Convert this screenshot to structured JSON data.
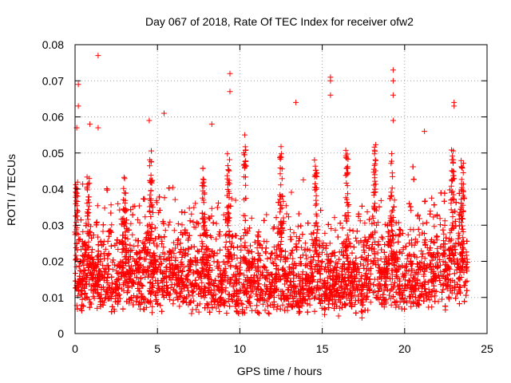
{
  "chart_data": {
    "type": "scatter",
    "title": "Day 067 of 2018, Rate Of TEC Index for receiver ofw2",
    "xlabel": "GPS time / hours",
    "ylabel": "ROTI / TECUs",
    "xlim": [
      0,
      25
    ],
    "ylim": [
      0,
      0.08
    ],
    "xticks": [
      0,
      5,
      10,
      15,
      20,
      25
    ],
    "xtick_labels": [
      "0",
      "5",
      "10",
      "15",
      "20",
      "25"
    ],
    "yticks": [
      0,
      0.01,
      0.02,
      0.03,
      0.04,
      0.05,
      0.06,
      0.07,
      0.08
    ],
    "ytick_labels": [
      "0",
      "0.01",
      "0.02",
      "0.03",
      "0.04",
      "0.05",
      "0.06",
      "0.07",
      "0.08"
    ],
    "grid": true,
    "marker": "+",
    "series": [
      {
        "name": "ROTI",
        "color": "#ff0000",
        "x_range": [
          0,
          23.8
        ],
        "baseline_median": 0.014,
        "typical_range": [
          0.006,
          0.035
        ],
        "notable_points": [
          {
            "x": 1.4,
            "y": 0.077
          },
          {
            "x": 0.2,
            "y": 0.069
          },
          {
            "x": 0.2,
            "y": 0.063
          },
          {
            "x": 0.1,
            "y": 0.057
          },
          {
            "x": 0.9,
            "y": 0.058
          },
          {
            "x": 1.4,
            "y": 0.057
          },
          {
            "x": 4.5,
            "y": 0.059
          },
          {
            "x": 5.4,
            "y": 0.061
          },
          {
            "x": 8.3,
            "y": 0.058
          },
          {
            "x": 9.4,
            "y": 0.072
          },
          {
            "x": 9.4,
            "y": 0.067
          },
          {
            "x": 10.3,
            "y": 0.055
          },
          {
            "x": 13.4,
            "y": 0.064
          },
          {
            "x": 15.5,
            "y": 0.071
          },
          {
            "x": 15.5,
            "y": 0.07
          },
          {
            "x": 15.5,
            "y": 0.066
          },
          {
            "x": 19.3,
            "y": 0.073
          },
          {
            "x": 19.3,
            "y": 0.07
          },
          {
            "x": 19.3,
            "y": 0.066
          },
          {
            "x": 19.3,
            "y": 0.059
          },
          {
            "x": 21.2,
            "y": 0.056
          },
          {
            "x": 23.0,
            "y": 0.064
          },
          {
            "x": 23.0,
            "y": 0.063
          }
        ],
        "spike_clusters": [
          {
            "x": 0.1,
            "y_max": 0.042
          },
          {
            "x": 0.8,
            "y_max": 0.045
          },
          {
            "x": 3.0,
            "y_max": 0.044
          },
          {
            "x": 4.6,
            "y_max": 0.051
          },
          {
            "x": 7.8,
            "y_max": 0.046
          },
          {
            "x": 9.3,
            "y_max": 0.05
          },
          {
            "x": 10.3,
            "y_max": 0.052
          },
          {
            "x": 12.5,
            "y_max": 0.052
          },
          {
            "x": 14.6,
            "y_max": 0.049
          },
          {
            "x": 16.5,
            "y_max": 0.051
          },
          {
            "x": 18.2,
            "y_max": 0.053
          },
          {
            "x": 19.2,
            "y_max": 0.05
          },
          {
            "x": 22.9,
            "y_max": 0.053
          },
          {
            "x": 23.5,
            "y_max": 0.048
          }
        ],
        "point_count_drawn": 5500
      }
    ]
  }
}
